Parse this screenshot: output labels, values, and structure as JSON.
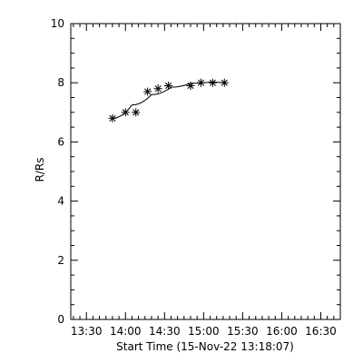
{
  "chart_data": {
    "type": "scatter",
    "title": "",
    "xlabel": "Start Time (15-Nov-22 13:18:07)",
    "ylabel": "R/Rs",
    "x_tick_labels": [
      "13:30",
      "14:00",
      "14:30",
      "15:00",
      "15:30",
      "16:00",
      "16:30"
    ],
    "y_tick_labels": [
      "0",
      "2",
      "4",
      "6",
      "8",
      "10"
    ],
    "xlim": [
      "13:18",
      "16:45"
    ],
    "ylim": [
      0,
      10
    ],
    "grid": false,
    "legend": "none",
    "series": [
      {
        "marker": "asterisk",
        "x": [
          "13:50",
          "14:00",
          "14:08",
          "14:17",
          "14:25",
          "14:33",
          "14:50",
          "14:58",
          "15:07",
          "15:16"
        ],
        "y": [
          6.8,
          7.0,
          7.0,
          7.7,
          7.8,
          7.9,
          7.9,
          8.0,
          8.0,
          8.0
        ]
      }
    ],
    "fit_curve": {
      "x": [
        "13:50",
        "14:05",
        "14:20",
        "14:35",
        "14:50",
        "15:05",
        "15:16"
      ],
      "y": [
        6.8,
        7.25,
        7.6,
        7.85,
        7.98,
        8.02,
        8.0
      ]
    }
  }
}
